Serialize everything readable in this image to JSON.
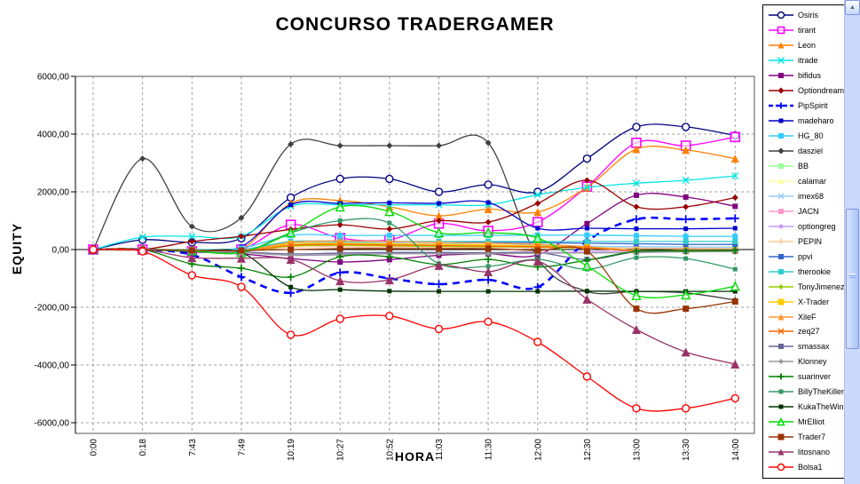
{
  "icons": {
    "scroll_up": "▲"
  },
  "chart_data": {
    "type": "line",
    "title": "CONCURSO TRADERGAMER",
    "xlabel": "HORA",
    "ylabel": "EQUITY",
    "ylim": [
      -6000,
      6000
    ],
    "grid": true,
    "legend_position": "right",
    "categories": [
      "0:00",
      "0:18",
      "7:43",
      "7:49",
      "10:19",
      "10:27",
      "10:52",
      "11:03",
      "11:30",
      "12:00",
      "12:30",
      "13:00",
      "13:30",
      "14:00"
    ],
    "y_ticks": [
      {
        "v": 6000,
        "label": "6000,00"
      },
      {
        "v": 4000,
        "label": "4000,00"
      },
      {
        "v": 2000,
        "label": "2000,00"
      },
      {
        "v": 0,
        "label": "0,00"
      },
      {
        "v": -2000,
        "label": "-2000,00"
      },
      {
        "v": -4000,
        "label": "-4000,00"
      },
      {
        "v": -6000,
        "label": "-6000,00"
      }
    ],
    "series": [
      {
        "name": "Osiris",
        "color": "#000080",
        "marker": "circle-open",
        "size": 4,
        "values": [
          0,
          340,
          250,
          390,
          1800,
          2450,
          2450,
          2000,
          2250,
          2000,
          3150,
          4250,
          4250,
          3950
        ]
      },
      {
        "name": "tirant",
        "color": "#FF00FF",
        "marker": "square-open",
        "size": 5,
        "values": [
          0,
          0,
          -60,
          0,
          860,
          400,
          340,
          900,
          650,
          950,
          2180,
          3700,
          3600,
          3900
        ]
      },
      {
        "name": "Leon",
        "color": "#FF8000",
        "marker": "triangle",
        "size": 4.5,
        "values": [
          0,
          0,
          -50,
          0,
          1600,
          1700,
          1480,
          1170,
          1400,
          1300,
          2150,
          3480,
          3450,
          3150
        ]
      },
      {
        "name": "itrade",
        "color": "#00E6E6",
        "marker": "x",
        "size": 3.5,
        "values": [
          0,
          430,
          460,
          460,
          1500,
          1550,
          1550,
          1550,
          1550,
          1900,
          2150,
          2300,
          2400,
          2550
        ]
      },
      {
        "name": "bifidus",
        "color": "#800080",
        "marker": "square",
        "size": 3,
        "values": [
          0,
          0,
          -80,
          -150,
          -310,
          -430,
          -350,
          -200,
          -150,
          -185,
          900,
          1880,
          1820,
          1500
        ]
      },
      {
        "name": "Optiondream",
        "color": "#990000",
        "marker": "diamond",
        "size": 3.5,
        "values": [
          0,
          0,
          280,
          460,
          700,
          860,
          710,
          1000,
          950,
          1600,
          2400,
          1480,
          1480,
          1800
        ]
      },
      {
        "name": "PipSpirit",
        "color": "#0000FF",
        "marker": "plus",
        "size": 4.5,
        "width": 2.6,
        "dash": "8,6",
        "values": [
          0,
          0,
          -180,
          -950,
          -1500,
          -800,
          -1000,
          -1200,
          -1050,
          -1300,
          300,
          1050,
          1050,
          1080
        ]
      },
      {
        "name": "madeharo",
        "color": "#0000CC",
        "marker": "square",
        "size": 2.5,
        "values": [
          0,
          0,
          0,
          100,
          1550,
          1600,
          1620,
          1600,
          1630,
          740,
          740,
          720,
          720,
          740
        ]
      },
      {
        "name": "HG_80",
        "color": "#33CCFF",
        "marker": "square",
        "size": 3,
        "values": [
          0,
          0,
          0,
          50,
          490,
          490,
          490,
          490,
          490,
          500,
          500,
          480,
          460,
          460
        ]
      },
      {
        "name": "dasziel",
        "color": "#404040",
        "marker": "diamond",
        "size": 3.5,
        "values": [
          0,
          3150,
          800,
          1100,
          3650,
          3600,
          3600,
          3600,
          3700,
          -300,
          -1450,
          -1450,
          -1500,
          -1750
        ]
      },
      {
        "name": "BB",
        "color": "#99FF99",
        "marker": "square",
        "size": 3,
        "values": [
          0,
          0,
          0,
          0,
          150,
          200,
          180,
          150,
          150,
          120,
          100,
          100,
          90,
          90
        ]
      },
      {
        "name": "calamar",
        "color": "#FFFF99",
        "marker": "triangle",
        "size": 3,
        "values": [
          0,
          0,
          -30,
          -50,
          100,
          150,
          120,
          100,
          100,
          80,
          60,
          50,
          40,
          40
        ]
      },
      {
        "name": "imex68",
        "color": "#99CCFF",
        "marker": "x",
        "size": 3,
        "values": [
          0,
          0,
          0,
          0,
          200,
          250,
          230,
          200,
          220,
          150,
          120,
          100,
          90,
          80
        ]
      },
      {
        "name": "JACN",
        "color": "#FF99CC",
        "marker": "square",
        "size": 3,
        "values": [
          0,
          0,
          -40,
          -60,
          150,
          100,
          80,
          120,
          100,
          80,
          60,
          50,
          40,
          30
        ]
      },
      {
        "name": "optiongreg",
        "color": "#CC99FF",
        "marker": "circle",
        "size": 3,
        "values": [
          0,
          0,
          -50,
          -100,
          -200,
          -150,
          -120,
          -100,
          -120,
          -100,
          -80,
          -50,
          -40,
          -30
        ]
      },
      {
        "name": "PEPIN",
        "color": "#FFCC99",
        "marker": "plus",
        "size": 3,
        "values": [
          0,
          0,
          -20,
          -40,
          80,
          100,
          90,
          80,
          80,
          60,
          50,
          40,
          30,
          30
        ]
      },
      {
        "name": "ppvi",
        "color": "#3366CC",
        "marker": "square",
        "size": 3,
        "values": [
          0,
          0,
          0,
          0,
          250,
          300,
          280,
          260,
          260,
          240,
          220,
          200,
          180,
          180
        ]
      },
      {
        "name": "therookie",
        "color": "#33CCCC",
        "marker": "square",
        "size": 3,
        "values": [
          0,
          0,
          0,
          0,
          280,
          280,
          280,
          280,
          280,
          280,
          280,
          280,
          280,
          280
        ]
      },
      {
        "name": "TonyJimenez",
        "color": "#99CC00",
        "marker": "diamond",
        "size": 3,
        "values": [
          0,
          0,
          -30,
          -50,
          120,
          150,
          130,
          110,
          100,
          80,
          60,
          -30,
          -30,
          -30
        ]
      },
      {
        "name": "X-Trader",
        "color": "#FFCC00",
        "marker": "square",
        "size": 3.5,
        "values": [
          0,
          0,
          -20,
          -30,
          200,
          220,
          200,
          180,
          160,
          120,
          80,
          -30,
          -30,
          -30
        ]
      },
      {
        "name": "XileF",
        "color": "#FF9933",
        "marker": "triangle",
        "size": 3.5,
        "values": [
          0,
          0,
          -30,
          -50,
          250,
          300,
          280,
          250,
          220,
          180,
          100,
          -40,
          -40,
          -40
        ]
      },
      {
        "name": "zeq27",
        "color": "#FF6600",
        "marker": "x",
        "size": 3,
        "values": [
          0,
          0,
          -40,
          -60,
          150,
          180,
          160,
          140,
          120,
          100,
          60,
          -50,
          -50,
          -50
        ]
      },
      {
        "name": "smassax",
        "color": "#666699",
        "marker": "square",
        "size": 3,
        "values": [
          0,
          0,
          -50,
          -80,
          -150,
          -120,
          -100,
          -100,
          -110,
          -100,
          -340,
          -80,
          -60,
          -50
        ]
      },
      {
        "name": "Klonney",
        "color": "#999999",
        "marker": "diamond",
        "size": 3,
        "values": [
          0,
          0,
          -60,
          -100,
          -200,
          -180,
          -150,
          -140,
          -150,
          -130,
          -120,
          -100,
          -80,
          -70
        ]
      },
      {
        "name": "suarinver",
        "color": "#008000",
        "marker": "plus",
        "size": 4,
        "values": [
          0,
          0,
          -500,
          -650,
          -950,
          -250,
          -250,
          -520,
          -340,
          -600,
          -370,
          -60,
          -50,
          -30
        ]
      },
      {
        "name": "BillyTheKiller",
        "color": "#339966",
        "marker": "square",
        "size": 2.5,
        "values": [
          0,
          0,
          -50,
          -100,
          580,
          1000,
          920,
          -490,
          -580,
          -340,
          -680,
          -280,
          -310,
          -680
        ]
      },
      {
        "name": "KukaTheWinner",
        "color": "#003300",
        "marker": "square",
        "size": 2.5,
        "values": [
          0,
          0,
          -60,
          -100,
          -1300,
          -1390,
          -1440,
          -1450,
          -1450,
          -1450,
          -1440,
          -1450,
          -1450,
          -1450
        ]
      },
      {
        "name": "MrElliot",
        "color": "#00DD00",
        "marker": "triangle-open",
        "size": 4.5,
        "values": [
          0,
          0,
          -50,
          -100,
          585,
          1480,
          1320,
          585,
          585,
          400,
          -570,
          -1590,
          -1570,
          -1270
        ]
      },
      {
        "name": "Trader7",
        "color": "#993300",
        "marker": "square",
        "size": 3.5,
        "values": [
          0,
          0,
          -30,
          -30,
          0,
          30,
          30,
          30,
          30,
          -30,
          -60,
          -2050,
          -2050,
          -1800
        ]
      },
      {
        "name": "litosnano",
        "color": "#993366",
        "marker": "triangle",
        "size": 5,
        "values": [
          0,
          0,
          -280,
          -300,
          -340,
          -1080,
          -1050,
          -550,
          -770,
          -400,
          -1720,
          -2770,
          -3550,
          -3970
        ]
      },
      {
        "name": "Bolsa1",
        "color": "#FF0000",
        "marker": "circle-open",
        "size": 4,
        "values": [
          0,
          -60,
          -890,
          -1290,
          -2950,
          -2400,
          -2300,
          -2750,
          -2500,
          -3200,
          -4400,
          -5500,
          -5500,
          -5150
        ]
      }
    ]
  }
}
